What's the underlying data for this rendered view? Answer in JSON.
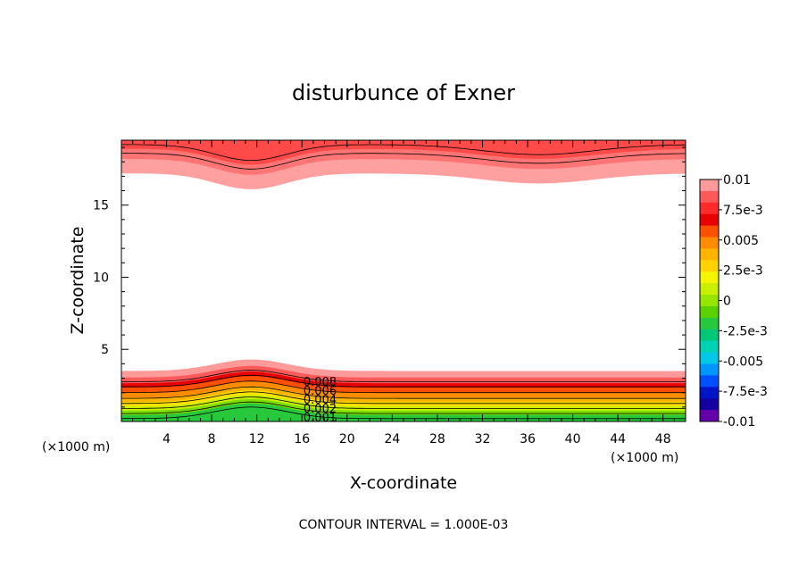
{
  "chart_data": {
    "type": "contour",
    "title": "disturbunce of Exner",
    "xlabel": "X-coordinate",
    "ylabel": "Z-coordinate",
    "x_unit_left": "(×1000 m)",
    "x_unit_right": "(×1000 m)",
    "xlim": [
      0,
      50
    ],
    "ylim": [
      0,
      19.5
    ],
    "x_ticks": [
      4,
      8,
      12,
      16,
      20,
      24,
      28,
      32,
      36,
      40,
      44,
      48
    ],
    "y_ticks": [
      5,
      10,
      15
    ],
    "footer": "CONTOUR INTERVAL = 1.000E-03",
    "colorbar": {
      "range": [
        -0.01,
        0.01
      ],
      "labels": [
        "0.01",
        "7.5e-3",
        "0.005",
        "2.5e-3",
        "0",
        "-2.5e-3",
        "-0.005",
        "-7.5e-3",
        "-0.01"
      ],
      "label_values": [
        0.01,
        0.0075,
        0.005,
        0.0025,
        0,
        -0.0025,
        -0.005,
        -0.0075,
        -0.01
      ],
      "colors": [
        "#ff9a9a",
        "#ff5a5a",
        "#ff2a2a",
        "#e80000",
        "#ff5000",
        "#ff8c00",
        "#ffb400",
        "#ffd200",
        "#f5f500",
        "#c8f000",
        "#96e600",
        "#5ad200",
        "#28c83c",
        "#00c878",
        "#00d2b4",
        "#00c8e6",
        "#0096ff",
        "#0050ff",
        "#0014c8",
        "#1400a0",
        "#6400aa"
      ]
    },
    "contour_labels": [
      "0.008",
      "0.006",
      "0.004",
      "0.002",
      "0.001"
    ],
    "contour_label_values": [
      0.008,
      0.006,
      0.004,
      0.002,
      0.001
    ]
  }
}
